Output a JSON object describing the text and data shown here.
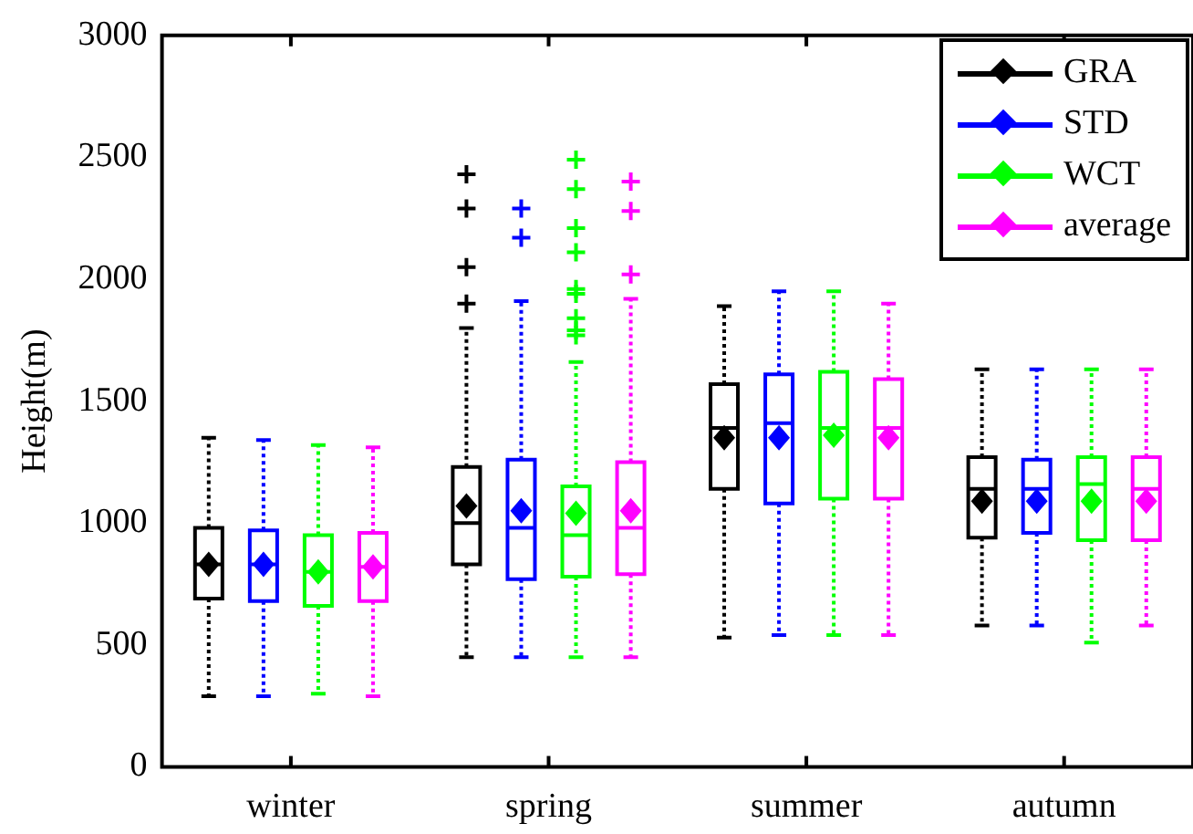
{
  "chart_data": {
    "type": "box",
    "ylabel": "Height(m)",
    "ylim": [
      0,
      3000
    ],
    "yticks": [
      0,
      500,
      1000,
      1500,
      2000,
      2500,
      3000
    ],
    "legend": "top right",
    "categories": [
      "winter",
      "spring",
      "summer",
      "autumn"
    ],
    "series": [
      {
        "name": "GRA",
        "color": "#000000",
        "boxes": [
          {
            "low": 290,
            "q1": 690,
            "median": 830,
            "q3": 980,
            "high": 1350,
            "mean": 830
          },
          {
            "low": 450,
            "q1": 830,
            "median": 1000,
            "q3": 1230,
            "high": 1800,
            "mean": 1070,
            "outliers": [
              1900,
              2050,
              2290,
              2430
            ]
          },
          {
            "low": 530,
            "q1": 1140,
            "median": 1390,
            "q3": 1570,
            "high": 1890,
            "mean": 1350
          },
          {
            "low": 580,
            "q1": 940,
            "median": 1140,
            "q3": 1270,
            "high": 1630,
            "mean": 1090
          }
        ]
      },
      {
        "name": "STD",
        "color": "#0000ff",
        "boxes": [
          {
            "low": 290,
            "q1": 680,
            "median": 830,
            "q3": 970,
            "high": 1340,
            "mean": 830
          },
          {
            "low": 450,
            "q1": 770,
            "median": 980,
            "q3": 1260,
            "high": 1910,
            "mean": 1050,
            "outliers": [
              2170,
              2290
            ]
          },
          {
            "low": 540,
            "q1": 1080,
            "median": 1410,
            "q3": 1610,
            "high": 1950,
            "mean": 1350
          },
          {
            "low": 580,
            "q1": 960,
            "median": 1140,
            "q3": 1260,
            "high": 1630,
            "mean": 1090
          }
        ]
      },
      {
        "name": "WCT",
        "color": "#00ff00",
        "boxes": [
          {
            "low": 300,
            "q1": 660,
            "median": 800,
            "q3": 950,
            "high": 1320,
            "mean": 800
          },
          {
            "low": 450,
            "q1": 780,
            "median": 950,
            "q3": 1150,
            "high": 1660,
            "mean": 1040,
            "outliers": [
              1770,
              1790,
              1840,
              1940,
              1960,
              2110,
              2210,
              2370,
              2490
            ]
          },
          {
            "low": 540,
            "q1": 1100,
            "median": 1390,
            "q3": 1620,
            "high": 1950,
            "mean": 1360
          },
          {
            "low": 510,
            "q1": 930,
            "median": 1160,
            "q3": 1270,
            "high": 1630,
            "mean": 1090
          }
        ]
      },
      {
        "name": "average",
        "color": "#ff00ff",
        "boxes": [
          {
            "low": 290,
            "q1": 680,
            "median": 820,
            "q3": 960,
            "high": 1310,
            "mean": 820
          },
          {
            "low": 450,
            "q1": 790,
            "median": 980,
            "q3": 1250,
            "high": 1920,
            "mean": 1050,
            "outliers": [
              2020,
              2280,
              2400
            ]
          },
          {
            "low": 540,
            "q1": 1100,
            "median": 1390,
            "q3": 1590,
            "high": 1900,
            "mean": 1350
          },
          {
            "low": 580,
            "q1": 930,
            "median": 1140,
            "q3": 1270,
            "high": 1630,
            "mean": 1090
          }
        ]
      }
    ]
  }
}
